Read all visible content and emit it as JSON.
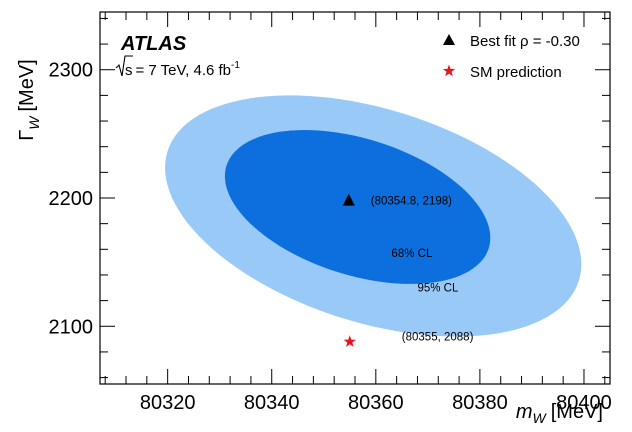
{
  "chart_data": {
    "type": "scatter",
    "experiment": "ATLAS",
    "energy": "s",
    "energy_value": "= 7 TeV, 4.6 fb",
    "luminosity_exp": "-1",
    "xlabel_symbol": "m",
    "xlabel_sub": "W",
    "xlabel_unit": "[MeV]",
    "ylabel_symbol": "Γ",
    "ylabel_sub": "W",
    "ylabel_unit": "[MeV]",
    "xlim": [
      80307,
      80405
    ],
    "ylim": [
      2055,
      2345
    ],
    "x_ticks": [
      80320,
      80340,
      80360,
      80380,
      80400
    ],
    "y_ticks": [
      2100,
      2200,
      2300
    ],
    "x_minor_step": 4,
    "y_minor_step": 20,
    "legend": [
      {
        "label": "Best fit ρ = -0.30",
        "marker": "triangle",
        "color": "#000000"
      },
      {
        "label": "SM prediction",
        "marker": "star",
        "color": "#e8141c"
      }
    ],
    "best_fit": {
      "x": 80354.8,
      "y": 2198,
      "label": "(80354.8, 2198)"
    },
    "sm_prediction": {
      "x": 80355,
      "y": 2088,
      "label": "(80355, 2088)"
    },
    "contours": [
      {
        "label": "95% CL",
        "color": "#99c9f7",
        "cx": 80359.5,
        "cy": 2186,
        "rx": 40,
        "ry": 94,
        "tilt": -0.4,
        "label_pos": [
          80368,
          2127
        ]
      },
      {
        "label": "68% CL",
        "color": "#0d6fde",
        "cx": 80356.5,
        "cy": 2193,
        "rx": 25.5,
        "ry": 60,
        "tilt": -0.4,
        "label_pos": [
          80363,
          2154
        ]
      }
    ]
  }
}
